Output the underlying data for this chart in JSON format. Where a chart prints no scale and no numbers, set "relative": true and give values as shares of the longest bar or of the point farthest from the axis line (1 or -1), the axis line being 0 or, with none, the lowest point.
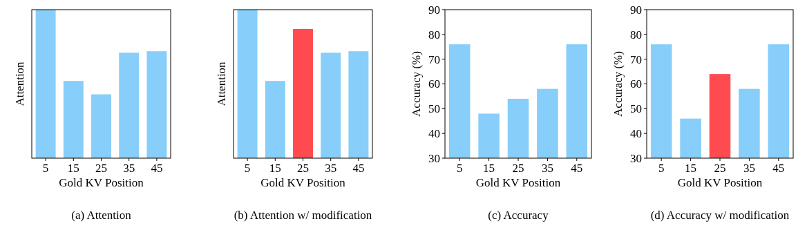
{
  "chart_data": [
    {
      "type": "bar",
      "relative": true,
      "tick_labels": "x",
      "ylabel": "Attention",
      "xlabel": "Gold KV Position",
      "categories": [
        "5",
        "15",
        "25",
        "35",
        "45"
      ],
      "values": [
        1,
        0.52,
        0.43,
        0.71,
        0.72
      ],
      "colors": [
        "#87cefa",
        "#87cefa",
        "#87cefa",
        "#87cefa",
        "#87cefa"
      ],
      "annotations": [
        "(a) Attention"
      ]
    },
    {
      "type": "bar",
      "relative": true,
      "tick_labels": "x",
      "ylabel": "Attention",
      "xlabel": "Gold KV Position",
      "categories": [
        "5",
        "15",
        "25",
        "35",
        "45"
      ],
      "values": [
        1,
        0.52,
        0.87,
        0.71,
        0.72
      ],
      "colors": [
        "#87cefa",
        "#87cefa",
        "#ff4b4f",
        "#87cefa",
        "#87cefa"
      ],
      "annotations": [
        "(b) Attention w/ modification"
      ]
    },
    {
      "type": "bar",
      "ylabel": "Accuracy (%)",
      "xlabel": "Gold KV Position",
      "categories": [
        "5",
        "15",
        "25",
        "35",
        "45"
      ],
      "values": [
        76,
        48,
        54,
        58,
        76
      ],
      "colors": [
        "#87cefa",
        "#87cefa",
        "#87cefa",
        "#87cefa",
        "#87cefa"
      ],
      "ylim": [
        30,
        90
      ],
      "yticks": [
        30,
        40,
        50,
        60,
        70,
        80,
        90
      ],
      "annotations": [
        "(c) Accuracy"
      ]
    },
    {
      "type": "bar",
      "ylabel": "Accuracy (%)",
      "xlabel": "Gold KV Position",
      "categories": [
        "5",
        "15",
        "25",
        "35",
        "45"
      ],
      "values": [
        76,
        46,
        64,
        58,
        76
      ],
      "colors": [
        "#87cefa",
        "#87cefa",
        "#ff4b4f",
        "#87cefa",
        "#87cefa"
      ],
      "ylim": [
        30,
        90
      ],
      "yticks": [
        30,
        40,
        50,
        60,
        70,
        80,
        90
      ],
      "annotations": [
        "(d) Accuracy w/ modification"
      ]
    }
  ]
}
